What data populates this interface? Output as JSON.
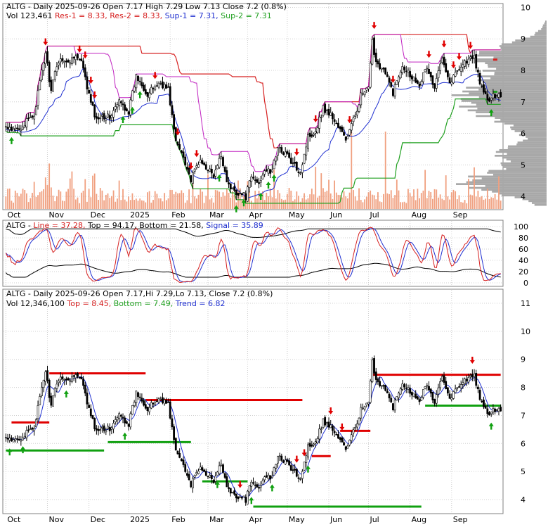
{
  "chart_data": [
    {
      "type": "candlestick",
      "panel": "price",
      "title_parts": [
        {
          "text": "ALTG - Daily 2025-09-26 Open 7.17  High 7.29  Low 7.13  Close 7.2 (0.8%)",
          "color": "#000000"
        }
      ],
      "legend_parts": [
        {
          "text": "Vol 123,461",
          "color": "#000000"
        },
        {
          "text": "Res-1 = 8.33,",
          "color": "#d62020"
        },
        {
          "text": "Res-2 = 8.33,",
          "color": "#d62020"
        },
        {
          "text": "Sup-1 = 7.31,",
          "color": "#2030d0"
        },
        {
          "text": "Sup-2 = 7.31",
          "color": "#20a020"
        }
      ],
      "x_tick_labels": [
        "Oct",
        "Nov",
        "Dec",
        "2025",
        "Feb",
        "Mar",
        "Apr",
        "May",
        "Jun",
        "Jul",
        "Aug",
        "Sep"
      ],
      "x_tick_days": [
        0,
        22,
        44,
        65,
        87,
        107,
        128,
        149,
        171,
        192,
        214,
        236
      ],
      "y_ticks": [
        4,
        5,
        6,
        7,
        8,
        9,
        10
      ],
      "ylim": [
        3.6,
        10.1
      ],
      "grid": true,
      "res1_level": 8.33,
      "sup1_level": 7.31,
      "sup2_level": 7.31,
      "down_arrow_days": [
        21,
        39,
        42,
        45,
        47,
        79,
        91,
        98,
        101,
        154,
        164,
        182,
        195,
        205,
        224,
        232,
        237,
        240,
        246
      ],
      "up_arrow_days": [
        3,
        62,
        67,
        71,
        113,
        122,
        126,
        135,
        139,
        142,
        257
      ]
    },
    {
      "type": "line",
      "panel": "oscillator",
      "legend_parts": [
        {
          "text": "ALTG - ",
          "color": "#000000"
        },
        {
          "text": "Line = 37.28,",
          "color": "#d62020"
        },
        {
          "text": "Top = 94.17,",
          "color": "#000000"
        },
        {
          "text": "Bottom = 21.58,",
          "color": "#000000"
        },
        {
          "text": "Signal = 35.89",
          "color": "#2030d0"
        }
      ],
      "y_ticks": [
        0,
        20,
        40,
        60,
        80,
        100
      ],
      "ylim": [
        -5,
        105
      ]
    },
    {
      "type": "candlestick",
      "panel": "trend",
      "title_parts": [
        {
          "text": "ALTG - Daily 2025-09-26 Open 7.17,Hi 7.29,Lo 7.13, Close 7.2 (0.8%)",
          "color": "#000000"
        }
      ],
      "legend_parts": [
        {
          "text": "Vol 12,346,100",
          "color": "#000000"
        },
        {
          "text": "Top = 8.45,",
          "color": "#d62020"
        },
        {
          "text": "Bottom = 7.49,",
          "color": "#20a020"
        },
        {
          "text": "Trend = 6.82",
          "color": "#2030d0"
        }
      ],
      "x_tick_labels": [
        "Oct",
        "Nov",
        "Dec",
        "2025",
        "Feb",
        "Mar",
        "Apr",
        "May",
        "Jun",
        "Jul",
        "Aug",
        "Sep"
      ],
      "y_ticks": [
        4,
        5,
        6,
        7,
        8,
        9,
        10,
        11
      ],
      "ylim": [
        3.55,
        11.4
      ],
      "grid": true,
      "down_arrow_days": [
        124,
        154,
        158,
        172,
        178,
        247
      ],
      "up_arrow_days": [
        2,
        9,
        32,
        63,
        112,
        130,
        141,
        160,
        257
      ],
      "resistance_segments": [
        {
          "from": 3,
          "to": 23,
          "price": 6.75
        },
        {
          "from": 23,
          "to": 74,
          "price": 8.5
        },
        {
          "from": 74,
          "to": 157,
          "price": 7.55
        },
        {
          "from": 162,
          "to": 172,
          "price": 5.55
        },
        {
          "from": 177,
          "to": 193,
          "price": 6.45
        },
        {
          "from": 194,
          "to": 262,
          "price": 8.45
        }
      ],
      "support_segments": [
        {
          "from": 0,
          "to": 52,
          "price": 5.75
        },
        {
          "from": 54,
          "to": 98,
          "price": 6.05
        },
        {
          "from": 104,
          "to": 128,
          "price": 4.65
        },
        {
          "from": 131,
          "to": 220,
          "price": 3.75
        },
        {
          "from": 222,
          "to": 262,
          "price": 7.35
        }
      ]
    }
  ],
  "price_series": {
    "anchor_days": [
      0,
      3,
      10,
      15,
      18,
      21,
      24,
      27,
      30,
      33,
      36,
      40,
      44,
      48,
      50,
      55,
      60,
      65,
      69,
      72,
      75,
      79,
      82,
      86,
      90,
      94,
      98,
      102,
      107,
      110,
      114,
      118,
      122,
      127,
      130,
      134,
      137,
      140,
      144,
      148,
      152,
      156,
      160,
      164,
      168,
      172,
      176,
      180,
      184,
      188,
      192,
      194,
      196,
      200,
      205,
      210,
      215,
      219,
      223,
      227,
      231,
      235,
      240,
      244,
      248,
      252,
      256,
      260,
      262
    ],
    "anchor_closes": [
      6.2,
      6.05,
      6.3,
      6.6,
      7.6,
      8.6,
      7.3,
      8.2,
      8.4,
      8.2,
      8.5,
      8.25,
      7.2,
      6.4,
      6.6,
      6.5,
      7.0,
      6.7,
      7.8,
      7.6,
      7.2,
      7.5,
      7.6,
      7.4,
      5.7,
      5.3,
      4.5,
      5.1,
      4.9,
      4.6,
      5.3,
      4.3,
      4.15,
      4.0,
      4.6,
      4.4,
      4.9,
      4.7,
      5.5,
      5.4,
      5.0,
      4.8,
      5.9,
      6.1,
      6.8,
      6.6,
      6.2,
      5.8,
      6.4,
      7.2,
      7.4,
      8.9,
      8.3,
      8.0,
      7.3,
      8.2,
      7.8,
      7.6,
      8.1,
      7.4,
      8.5,
      7.6,
      8.1,
      8.3,
      8.4,
      7.4,
      7.0,
      7.3,
      7.2
    ],
    "down_months_end_day": 128
  },
  "volume_series": {
    "ylim_note": "relative bars",
    "spike_days": [
      183,
      201
    ]
  }
}
